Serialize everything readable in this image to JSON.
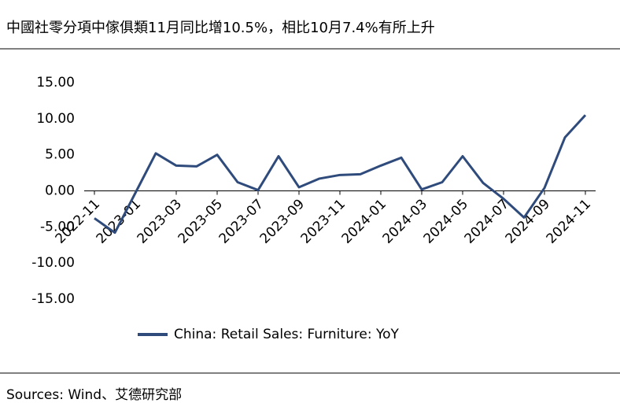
{
  "chart_data": {
    "type": "line",
    "title": "中國社零分項中傢俱類11月同比增10.5%，相比10月7.4%有所上升",
    "source": "Sources: Wind、艾德研究部",
    "categories": [
      "2022-11",
      null,
      "2023-01",
      null,
      "2023-03",
      null,
      "2023-05",
      null,
      "2023-07",
      null,
      "2023-09",
      null,
      "2023-11",
      null,
      "2024-01",
      null,
      "2024-03",
      null,
      "2024-05",
      null,
      "2024-07",
      null,
      "2024-09",
      null,
      "2024-11"
    ],
    "series": [
      {
        "name": "China: Retail Sales: Furniture: YoY",
        "color": "#2f4b7c",
        "values": [
          -3.8,
          -5.8,
          -0.3,
          5.2,
          3.5,
          3.4,
          5.0,
          1.2,
          0.1,
          4.8,
          0.5,
          1.7,
          2.2,
          2.3,
          3.5,
          4.6,
          0.2,
          1.2,
          4.8,
          1.1,
          -1.1,
          -3.7,
          0.4,
          7.4,
          10.5
        ]
      }
    ],
    "ylim": [
      -15,
      15
    ],
    "yticks": [
      {
        "value": 15,
        "label": "15.00"
      },
      {
        "value": 10,
        "label": "10.00"
      },
      {
        "value": 5,
        "label": "5.00"
      },
      {
        "value": 0,
        "label": "0.00"
      },
      {
        "value": -5,
        "label": "-5.00"
      },
      {
        "value": -10,
        "label": "-10.00"
      },
      {
        "value": -15,
        "label": "-15.00"
      }
    ],
    "legend": "bottom"
  }
}
